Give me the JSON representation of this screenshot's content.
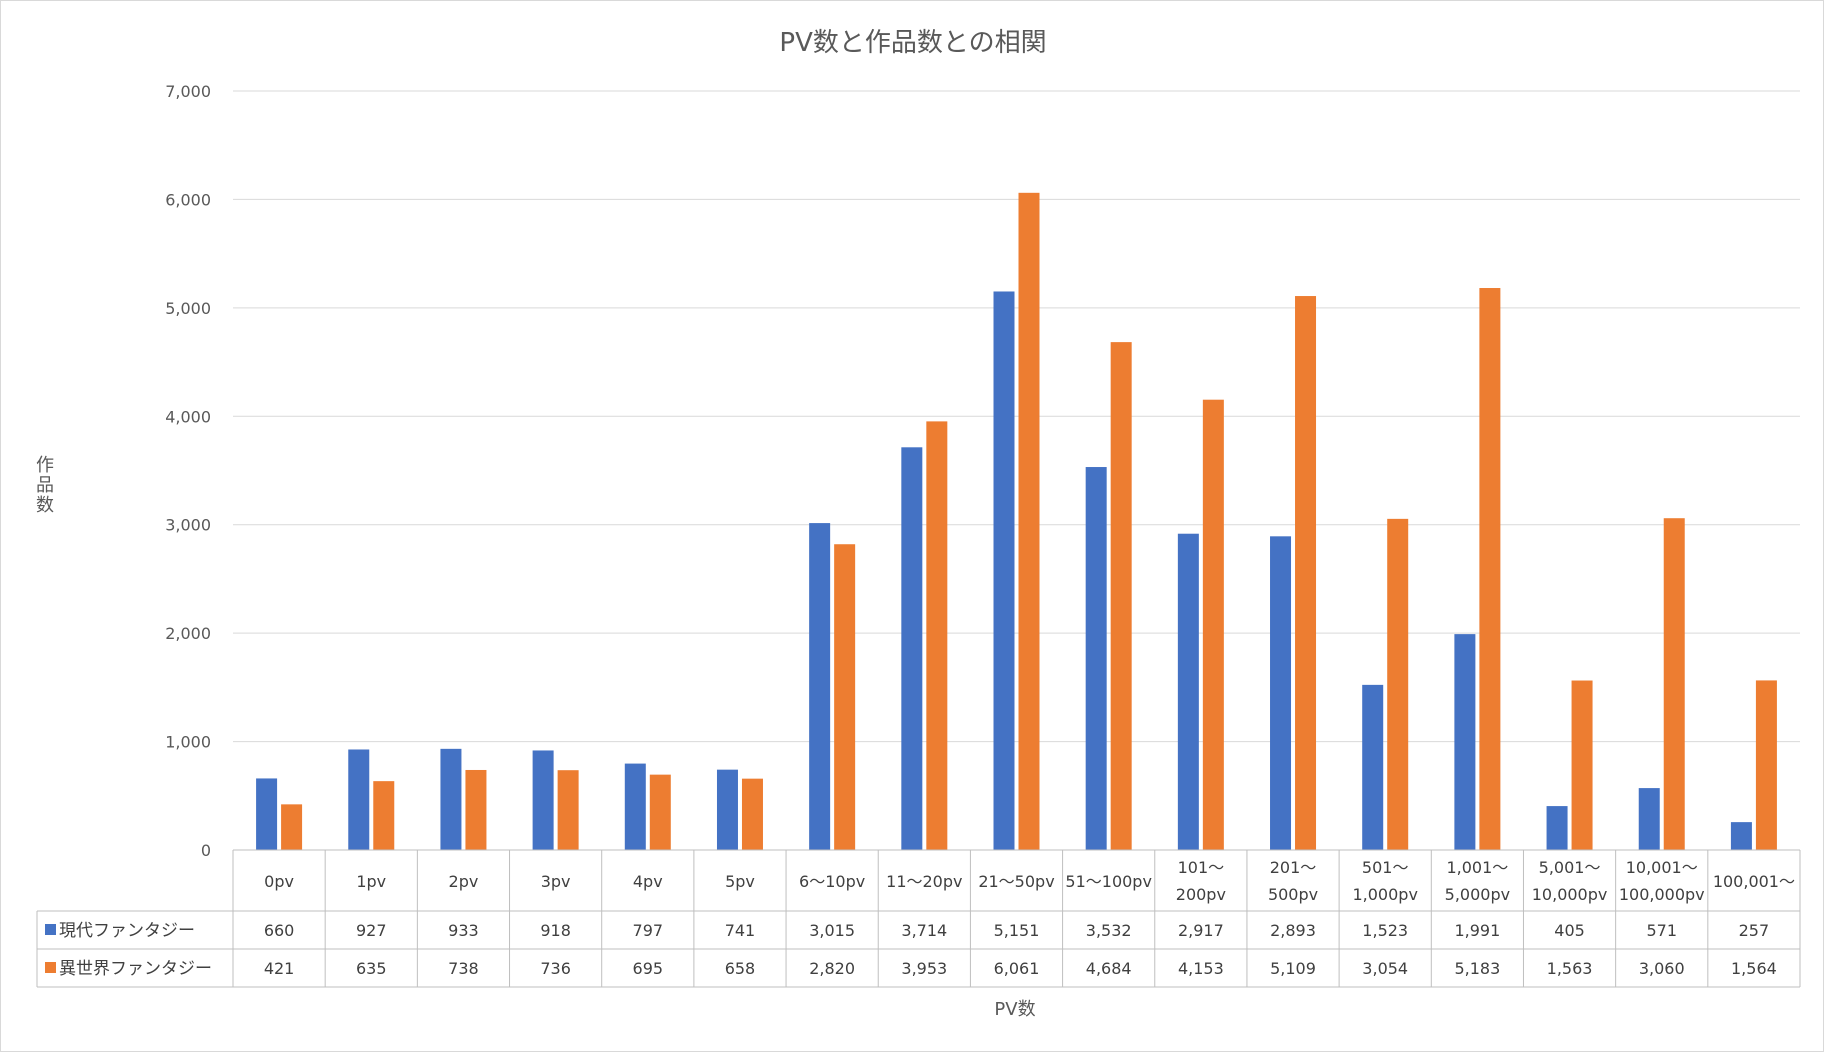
{
  "chart_data": {
    "type": "bar",
    "title": "PV数と作品数との相関",
    "xlabel": "PV数",
    "ylabel": "作品数",
    "ylim": [
      0,
      7000
    ],
    "yticks": [
      "0",
      "1,000",
      "2,000",
      "3,000",
      "4,000",
      "5,000",
      "6,000",
      "7,000"
    ],
    "grid": true,
    "legend": "data-table",
    "categories": [
      [
        "0pv"
      ],
      [
        "1pv"
      ],
      [
        "2pv"
      ],
      [
        "3pv"
      ],
      [
        "4pv"
      ],
      [
        "5pv"
      ],
      [
        "6～10pv"
      ],
      [
        "11～20pv"
      ],
      [
        "21～50pv"
      ],
      [
        "51～100pv"
      ],
      [
        "101～",
        "200pv"
      ],
      [
        "201～",
        "500pv"
      ],
      [
        "501～",
        "1,000pv"
      ],
      [
        "1,001～",
        "5,000pv"
      ],
      [
        "5,001～",
        "10,000pv"
      ],
      [
        "10,001～",
        "100,000pv"
      ],
      [
        "100,001～"
      ]
    ],
    "series": [
      {
        "name": "現代ファンタジー",
        "color": "#4472c4",
        "values": [
          660,
          927,
          933,
          918,
          797,
          741,
          3015,
          3714,
          5151,
          3532,
          2917,
          2893,
          1523,
          1991,
          405,
          571,
          257
        ],
        "labels": [
          "660",
          "927",
          "933",
          "918",
          "797",
          "741",
          "3,015",
          "3,714",
          "5,151",
          "3,532",
          "2,917",
          "2,893",
          "1,523",
          "1,991",
          "405",
          "571",
          "257"
        ]
      },
      {
        "name": "異世界ファンタジー",
        "color": "#ed7d31",
        "values": [
          421,
          635,
          738,
          736,
          695,
          658,
          2820,
          3953,
          6061,
          4684,
          4153,
          5109,
          3054,
          5183,
          1563,
          3060,
          1564
        ],
        "labels": [
          "421",
          "635",
          "738",
          "736",
          "695",
          "658",
          "2,820",
          "3,953",
          "6,061",
          "4,684",
          "4,153",
          "5,109",
          "3,054",
          "5,183",
          "1,563",
          "3,060",
          "1,564"
        ]
      }
    ]
  }
}
